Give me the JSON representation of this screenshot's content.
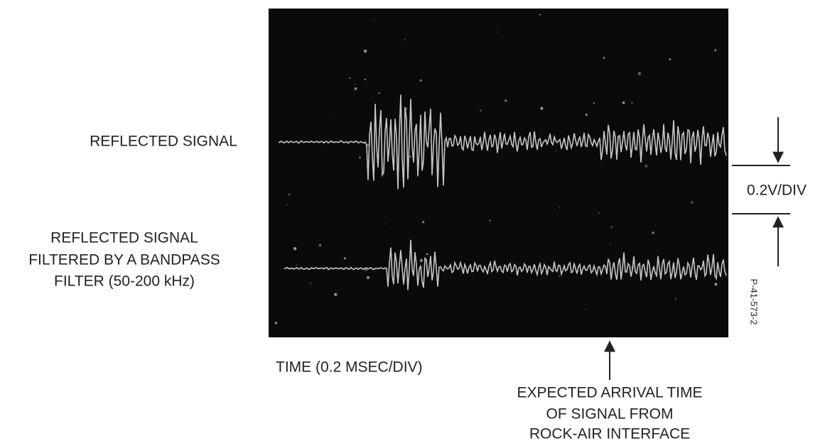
{
  "labels": {
    "top_trace": "REFLECTED SIGNAL",
    "bottom_trace": [
      "REFLECTED SIGNAL",
      "FILTERED BY A BANDPASS",
      "FILTER (50-200 kHz)"
    ],
    "vertical_scale": "0.2V/DIV",
    "time_scale": "TIME (0.2 MSEC/DIV)",
    "arrival_note": [
      "EXPECTED ARRIVAL TIME",
      "OF SIGNAL FROM",
      "ROCK-AIR INTERFACE"
    ],
    "figure_id": "P-41-573-2"
  }
}
